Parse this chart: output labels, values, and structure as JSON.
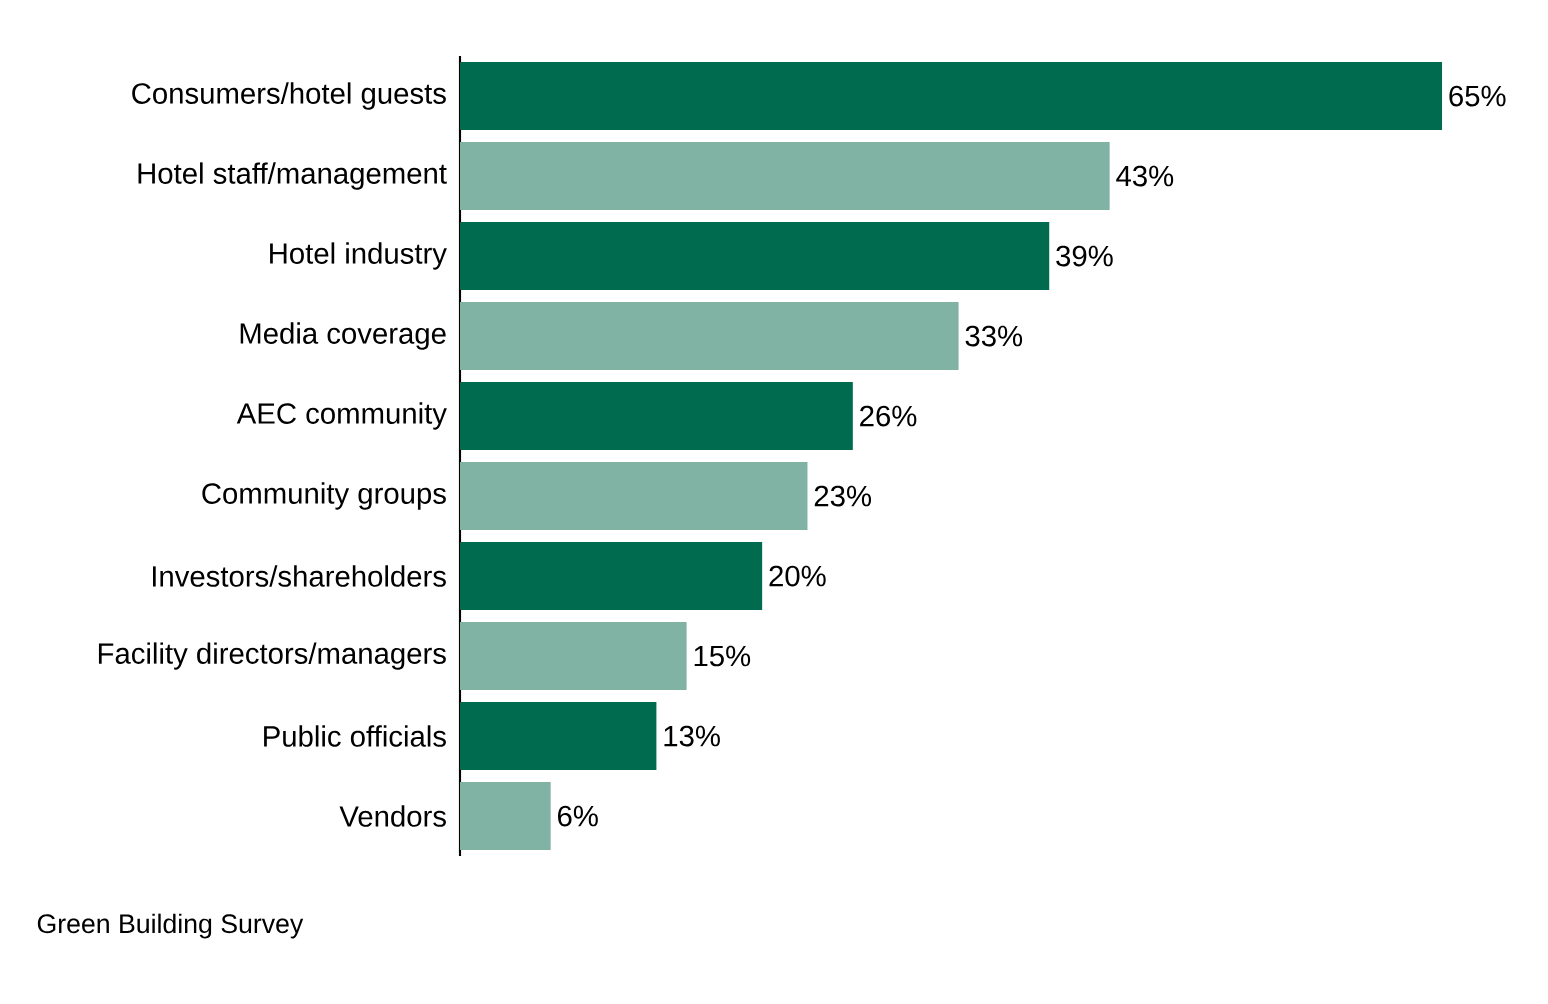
{
  "chart_data": {
    "type": "bar",
    "orientation": "horizontal",
    "categories": [
      "Consumers/hotel guests",
      "Hotel staff/management",
      "Hotel industry",
      "Media coverage",
      "AEC community",
      "Community groups",
      "Investors/shareholders",
      "Facility directors/managers",
      "Public officials",
      "Vendors"
    ],
    "values": [
      65,
      43,
      39,
      33,
      26,
      23,
      20,
      15,
      13,
      6
    ],
    "colors": [
      "#006b4f",
      "#80b3a3",
      "#006b4f",
      "#80b3a3",
      "#006b4f",
      "#80b3a3",
      "#006b4f",
      "#80b3a3",
      "#006b4f",
      "#80b3a3"
    ],
    "value_labels": [
      "65%",
      "43%",
      "39%",
      "33%",
      "26%",
      "23%",
      "20%",
      "15%",
      "13%",
      "6%"
    ],
    "annotations": [
      "Green Building Survey"
    ]
  }
}
